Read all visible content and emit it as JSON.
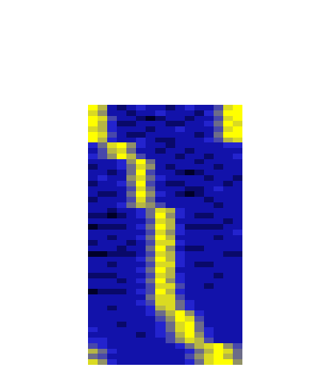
{
  "chart_data": {
    "type": "heatmap",
    "tick_labels": false,
    "cells": [
      [
        1,
        0.8,
        0.3,
        0.2,
        0.3,
        0.4,
        0.3,
        0.3,
        0.2,
        0.3,
        0.4,
        0.3,
        0.3,
        0.5,
        0.9,
        1
      ],
      [
        0.9,
        0.7,
        0.3,
        0.3,
        0.2,
        0.3,
        0.3,
        0.4,
        0.3,
        0.3,
        0.3,
        0.2,
        0.4,
        0.6,
        1,
        1
      ],
      [
        1,
        0.9,
        0.5,
        0.3,
        0.3,
        0.2,
        0.1,
        0.2,
        0.3,
        0.3,
        0.2,
        0.3,
        0.3,
        0.5,
        0.9,
        1
      ],
      [
        1,
        0.8,
        0.4,
        0.2,
        0.2,
        0.3,
        0.3,
        0.3,
        0.2,
        0.2,
        0.3,
        0.3,
        0.4,
        0.6,
        1,
        0.9
      ],
      [
        0.9,
        0.8,
        0.4,
        0.3,
        0.3,
        0.3,
        0.2,
        0.3,
        0.3,
        0.4,
        0.3,
        0.3,
        0.3,
        0.5,
        0.9,
        1
      ],
      [
        1,
        0.9,
        0.5,
        0.3,
        0.2,
        0.2,
        0.3,
        0.3,
        0.3,
        0.3,
        0.3,
        0.2,
        0.3,
        0.6,
        1,
        1
      ],
      [
        1,
        0.8,
        0.4,
        0.3,
        0.3,
        0.4,
        0.3,
        0.2,
        0.2,
        0.3,
        0.3,
        0.3,
        0.4,
        0.5,
        0.8,
        0.9
      ],
      [
        0.4,
        0.6,
        0.9,
        1,
        0.7,
        0.4,
        0.3,
        0.3,
        0.2,
        0.3,
        0.3,
        0.3,
        0.3,
        0.3,
        0.4,
        0.4
      ],
      [
        0.3,
        0.5,
        0.8,
        0.9,
        0.6,
        0.3,
        0.3,
        0.2,
        0.3,
        0.3,
        0.2,
        0.3,
        0.3,
        0.3,
        0.3,
        0.3
      ],
      [
        0.4,
        0.5,
        0.7,
        1,
        0.8,
        0.5,
        0.3,
        0.3,
        0.3,
        0.2,
        0.3,
        0.3,
        0.2,
        0.3,
        0.3,
        0.4
      ],
      [
        0.3,
        0.3,
        0.3,
        0.4,
        0.7,
        1,
        0.6,
        0.3,
        0.3,
        0.3,
        0.3,
        0.2,
        0.3,
        0.3,
        0.3,
        0.3
      ],
      [
        0.2,
        0.3,
        0.3,
        0.4,
        0.6,
        0.9,
        0.7,
        0.3,
        0.2,
        0.3,
        0.3,
        0.3,
        0.3,
        0.2,
        0.3,
        0.3
      ],
      [
        0.3,
        0.3,
        0.2,
        0.3,
        0.6,
        1,
        0.5,
        0.3,
        0.3,
        0.2,
        0.1,
        0.2,
        0.3,
        0.3,
        0.3,
        0.3
      ],
      [
        0.3,
        0.4,
        0.3,
        0.3,
        0.7,
        0.9,
        0.6,
        0.4,
        0.3,
        0.3,
        0.3,
        0.3,
        0.2,
        0.3,
        0.3,
        0.2
      ],
      [
        0.2,
        0.3,
        0.3,
        0.4,
        0.6,
        1,
        0.5,
        0.3,
        0.2,
        0.2,
        0.3,
        0.3,
        0.3,
        0.3,
        0.2,
        0.3
      ],
      [
        0.3,
        0.3,
        0.3,
        0.3,
        0.5,
        0.9,
        0.6,
        0.3,
        0.3,
        0.3,
        0.2,
        0.2,
        0.3,
        0.4,
        0.3,
        0.3
      ],
      [
        0.3,
        0.2,
        0.2,
        0.3,
        0.6,
        1,
        0.7,
        0.4,
        0.3,
        0.2,
        0.1,
        0.2,
        0.3,
        0.3,
        0.3,
        0.3
      ],
      [
        0.2,
        0.3,
        0.3,
        0.3,
        0.5,
        0.9,
        0.6,
        0.3,
        0.3,
        0.3,
        0.3,
        0.3,
        0.2,
        0.3,
        0.3,
        0.3
      ],
      [
        0.3,
        0.3,
        0.3,
        0.4,
        0.6,
        0.8,
        0.7,
        0.5,
        0.3,
        0.3,
        0.3,
        0.3,
        0.3,
        0.2,
        0.3,
        0.3
      ],
      [
        0.3,
        0.3,
        0.2,
        0.3,
        0.3,
        0.4,
        0.6,
        0.9,
        0.8,
        0.4,
        0.3,
        0.3,
        0.3,
        0.3,
        0.3,
        0.3
      ],
      [
        0.2,
        0.2,
        0.1,
        0.2,
        0.3,
        0.4,
        0.6,
        1,
        0.7,
        0.4,
        0.3,
        0.2,
        0.2,
        0.3,
        0.3,
        0.3
      ],
      [
        0.3,
        0.3,
        0.3,
        0.3,
        0.3,
        0.3,
        0.5,
        0.9,
        0.8,
        0.3,
        0.3,
        0.3,
        0.3,
        0.3,
        0.2,
        0.3
      ],
      [
        0.1,
        0.2,
        0.2,
        0.2,
        0.3,
        0.4,
        0.6,
        1,
        0.8,
        0.4,
        0.2,
        0.2,
        0.2,
        0.2,
        0.3,
        0.3
      ],
      [
        0.3,
        0.3,
        0.3,
        0.3,
        0.3,
        0.3,
        0.5,
        0.9,
        0.7,
        0.4,
        0.3,
        0.3,
        0.3,
        0.3,
        0.3,
        0.4
      ],
      [
        0.3,
        0.3,
        0.2,
        0.3,
        0.3,
        0.4,
        0.6,
        1,
        0.8,
        0.3,
        0.3,
        0.3,
        0.3,
        0.2,
        0.3,
        0.3
      ],
      [
        0.2,
        0.3,
        0.3,
        0.3,
        0.2,
        0.3,
        0.5,
        0.9,
        0.9,
        0.4,
        0.3,
        0.3,
        0.3,
        0.3,
        0.3,
        0.3
      ],
      [
        0.3,
        0.3,
        0.3,
        0.2,
        0.3,
        0.3,
        0.6,
        1,
        0.7,
        0.3,
        0.2,
        0.2,
        0.3,
        0.3,
        0.3,
        0.3
      ],
      [
        0.1,
        0.1,
        0.2,
        0.2,
        0.2,
        0.3,
        0.5,
        0.9,
        0.8,
        0.4,
        0.3,
        0.3,
        0.3,
        0.3,
        0.2,
        0.2
      ],
      [
        0.3,
        0.3,
        0.3,
        0.3,
        0.3,
        0.4,
        0.6,
        1,
        0.8,
        0.4,
        0.3,
        0.3,
        0.3,
        0.3,
        0.3,
        0.3
      ],
      [
        0.3,
        0.3,
        0.2,
        0.3,
        0.3,
        0.3,
        0.5,
        0.9,
        0.9,
        0.4,
        0.3,
        0.2,
        0.2,
        0.3,
        0.3,
        0.3
      ],
      [
        0.3,
        0.3,
        0.3,
        0.3,
        0.3,
        0.4,
        0.6,
        1,
        0.8,
        0.3,
        0.3,
        0.3,
        0.3,
        0.3,
        0.3,
        0.3
      ],
      [
        0.2,
        0.2,
        0.2,
        0.3,
        0.3,
        0.3,
        0.5,
        0.9,
        0.8,
        0.4,
        0.3,
        0.3,
        0.3,
        0.2,
        0.3,
        0.3
      ],
      [
        0.3,
        0.3,
        0.3,
        0.2,
        0.3,
        0.4,
        0.6,
        1,
        0.7,
        0.4,
        0.3,
        0.3,
        0.3,
        0.3,
        0.3,
        0.3
      ],
      [
        0.3,
        0.3,
        0.3,
        0.3,
        0.3,
        0.3,
        0.5,
        0.9,
        0.9,
        0.5,
        0.3,
        0.3,
        0.2,
        0.3,
        0.3,
        0.3
      ],
      [
        0.1,
        0.2,
        0.2,
        0.2,
        0.3,
        0.4,
        0.5,
        1,
        0.8,
        0.4,
        0.3,
        0.3,
        0.3,
        0.3,
        0.3,
        0.3
      ],
      [
        0.3,
        0.3,
        0.3,
        0.3,
        0.3,
        0.3,
        0.6,
        0.9,
        0.9,
        0.5,
        0.3,
        0.3,
        0.3,
        0.3,
        0.3,
        0.3
      ],
      [
        0.3,
        0.3,
        0.3,
        0.3,
        0.3,
        0.4,
        0.5,
        0.9,
        0.9,
        0.6,
        0.4,
        0.3,
        0.3,
        0.3,
        0.3,
        0.3
      ],
      [
        0.3,
        0.3,
        0.2,
        0.3,
        0.3,
        0.3,
        0.4,
        0.8,
        0.9,
        0.6,
        0.4,
        0.3,
        0.3,
        0.3,
        0.3,
        0.3
      ],
      [
        0.3,
        0.3,
        0.3,
        0.3,
        0.3,
        0.3,
        0.4,
        0.6,
        0.8,
        1,
        0.7,
        0.4,
        0.3,
        0.3,
        0.3,
        0.3
      ],
      [
        0.3,
        0.3,
        0.3,
        0.3,
        0.3,
        0.3,
        0.3,
        0.5,
        0.7,
        1,
        0.9,
        0.5,
        0.3,
        0.3,
        0.3,
        0.3
      ],
      [
        0.3,
        0.3,
        0.3,
        0.2,
        0.3,
        0.3,
        0.3,
        0.4,
        0.6,
        0.9,
        1,
        0.6,
        0.3,
        0.3,
        0.3,
        0.3
      ],
      [
        0.4,
        0.3,
        0.3,
        0.3,
        0.3,
        0.3,
        0.3,
        0.4,
        0.6,
        0.9,
        1,
        0.6,
        0.4,
        0.3,
        0.3,
        0.3
      ],
      [
        0.3,
        0.3,
        0.3,
        0.3,
        0.3,
        0.2,
        0.3,
        0.4,
        0.5,
        0.8,
        1,
        0.7,
        0.4,
        0.3,
        0.3,
        0.3
      ],
      [
        0.4,
        0.4,
        0.3,
        0.3,
        0.3,
        0.3,
        0.3,
        0.3,
        0.5,
        0.7,
        0.9,
        0.8,
        0.5,
        0.3,
        0.3,
        0.3
      ],
      [
        0.5,
        0.4,
        0.3,
        0.3,
        0.3,
        0.3,
        0.3,
        0.3,
        0.3,
        0.4,
        0.6,
        0.8,
        0.9,
        1,
        0.7,
        0.5
      ],
      [
        0.8,
        0.6,
        0.4,
        0.3,
        0.3,
        0.3,
        0.3,
        0.3,
        0.3,
        0.3,
        0.4,
        0.6,
        0.8,
        1,
        0.9,
        0.6
      ],
      [
        0.6,
        0.5,
        0.3,
        0.3,
        0.3,
        0.3,
        0.3,
        0.3,
        0.3,
        0.3,
        0.5,
        0.7,
        0.9,
        1,
        0.8,
        0.6
      ],
      [
        0.9,
        0.7,
        0.4,
        0.3,
        0.3,
        0.3,
        0.3,
        0.3,
        0.3,
        0.3,
        0.4,
        0.6,
        0.9,
        1,
        1,
        0.7
      ]
    ]
  }
}
